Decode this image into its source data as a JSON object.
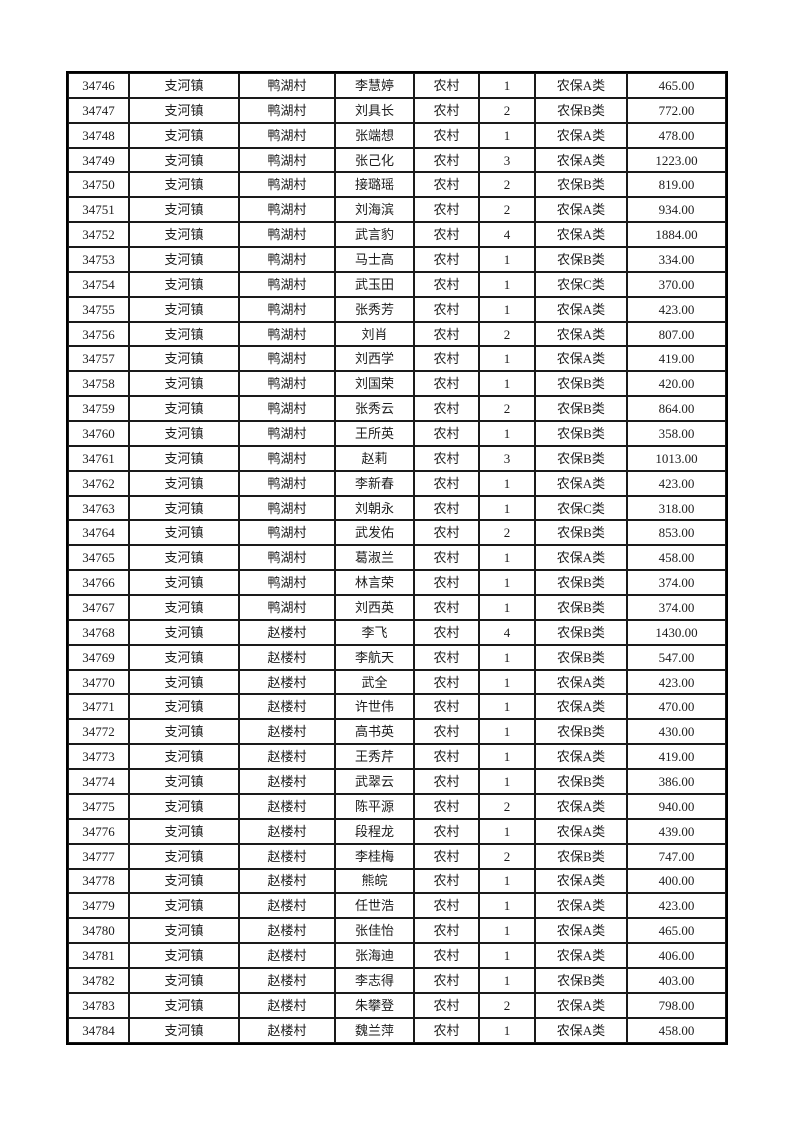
{
  "colors": {
    "page_background": "#ffffff",
    "grid_border": "#000000",
    "text": "#1c1c1c"
  },
  "table": {
    "rows": [
      [
        "34746",
        "支河镇",
        "鸭湖村",
        "李慧婷",
        "农村",
        "1",
        "农保A类",
        "465.00"
      ],
      [
        "34747",
        "支河镇",
        "鸭湖村",
        "刘具长",
        "农村",
        "2",
        "农保B类",
        "772.00"
      ],
      [
        "34748",
        "支河镇",
        "鸭湖村",
        "张端想",
        "农村",
        "1",
        "农保A类",
        "478.00"
      ],
      [
        "34749",
        "支河镇",
        "鸭湖村",
        "张己化",
        "农村",
        "3",
        "农保A类",
        "1223.00"
      ],
      [
        "34750",
        "支河镇",
        "鸭湖村",
        "接璐瑶",
        "农村",
        "2",
        "农保B类",
        "819.00"
      ],
      [
        "34751",
        "支河镇",
        "鸭湖村",
        "刘海滨",
        "农村",
        "2",
        "农保A类",
        "934.00"
      ],
      [
        "34752",
        "支河镇",
        "鸭湖村",
        "武言豹",
        "农村",
        "4",
        "农保A类",
        "1884.00"
      ],
      [
        "34753",
        "支河镇",
        "鸭湖村",
        "马士高",
        "农村",
        "1",
        "农保B类",
        "334.00"
      ],
      [
        "34754",
        "支河镇",
        "鸭湖村",
        "武玉田",
        "农村",
        "1",
        "农保C类",
        "370.00"
      ],
      [
        "34755",
        "支河镇",
        "鸭湖村",
        "张秀芳",
        "农村",
        "1",
        "农保A类",
        "423.00"
      ],
      [
        "34756",
        "支河镇",
        "鸭湖村",
        "刘肖",
        "农村",
        "2",
        "农保A类",
        "807.00"
      ],
      [
        "34757",
        "支河镇",
        "鸭湖村",
        "刘西学",
        "农村",
        "1",
        "农保A类",
        "419.00"
      ],
      [
        "34758",
        "支河镇",
        "鸭湖村",
        "刘国荣",
        "农村",
        "1",
        "农保B类",
        "420.00"
      ],
      [
        "34759",
        "支河镇",
        "鸭湖村",
        "张秀云",
        "农村",
        "2",
        "农保B类",
        "864.00"
      ],
      [
        "34760",
        "支河镇",
        "鸭湖村",
        "王所英",
        "农村",
        "1",
        "农保B类",
        "358.00"
      ],
      [
        "34761",
        "支河镇",
        "鸭湖村",
        "赵莉",
        "农村",
        "3",
        "农保B类",
        "1013.00"
      ],
      [
        "34762",
        "支河镇",
        "鸭湖村",
        "李新春",
        "农村",
        "1",
        "农保A类",
        "423.00"
      ],
      [
        "34763",
        "支河镇",
        "鸭湖村",
        "刘朝永",
        "农村",
        "1",
        "农保C类",
        "318.00"
      ],
      [
        "34764",
        "支河镇",
        "鸭湖村",
        "武发佑",
        "农村",
        "2",
        "农保B类",
        "853.00"
      ],
      [
        "34765",
        "支河镇",
        "鸭湖村",
        "葛淑兰",
        "农村",
        "1",
        "农保A类",
        "458.00"
      ],
      [
        "34766",
        "支河镇",
        "鸭湖村",
        "林言荣",
        "农村",
        "1",
        "农保B类",
        "374.00"
      ],
      [
        "34767",
        "支河镇",
        "鸭湖村",
        "刘西英",
        "农村",
        "1",
        "农保B类",
        "374.00"
      ],
      [
        "34768",
        "支河镇",
        "赵楼村",
        "李飞",
        "农村",
        "4",
        "农保B类",
        "1430.00"
      ],
      [
        "34769",
        "支河镇",
        "赵楼村",
        "李航天",
        "农村",
        "1",
        "农保B类",
        "547.00"
      ],
      [
        "34770",
        "支河镇",
        "赵楼村",
        "武全",
        "农村",
        "1",
        "农保A类",
        "423.00"
      ],
      [
        "34771",
        "支河镇",
        "赵楼村",
        "许世伟",
        "农村",
        "1",
        "农保A类",
        "470.00"
      ],
      [
        "34772",
        "支河镇",
        "赵楼村",
        "高书英",
        "农村",
        "1",
        "农保B类",
        "430.00"
      ],
      [
        "34773",
        "支河镇",
        "赵楼村",
        "王秀芹",
        "农村",
        "1",
        "农保A类",
        "419.00"
      ],
      [
        "34774",
        "支河镇",
        "赵楼村",
        "武翠云",
        "农村",
        "1",
        "农保B类",
        "386.00"
      ],
      [
        "34775",
        "支河镇",
        "赵楼村",
        "陈平源",
        "农村",
        "2",
        "农保A类",
        "940.00"
      ],
      [
        "34776",
        "支河镇",
        "赵楼村",
        "段程龙",
        "农村",
        "1",
        "农保A类",
        "439.00"
      ],
      [
        "34777",
        "支河镇",
        "赵楼村",
        "李桂梅",
        "农村",
        "2",
        "农保B类",
        "747.00"
      ],
      [
        "34778",
        "支河镇",
        "赵楼村",
        "熊皖",
        "农村",
        "1",
        "农保A类",
        "400.00"
      ],
      [
        "34779",
        "支河镇",
        "赵楼村",
        "任世浩",
        "农村",
        "1",
        "农保A类",
        "423.00"
      ],
      [
        "34780",
        "支河镇",
        "赵楼村",
        "张佳怡",
        "农村",
        "1",
        "农保A类",
        "465.00"
      ],
      [
        "34781",
        "支河镇",
        "赵楼村",
        "张海迪",
        "农村",
        "1",
        "农保A类",
        "406.00"
      ],
      [
        "34782",
        "支河镇",
        "赵楼村",
        "李志得",
        "农村",
        "1",
        "农保B类",
        "403.00"
      ],
      [
        "34783",
        "支河镇",
        "赵楼村",
        "朱攀登",
        "农村",
        "2",
        "农保A类",
        "798.00"
      ],
      [
        "34784",
        "支河镇",
        "赵楼村",
        "魏兰萍",
        "农村",
        "1",
        "农保A类",
        "458.00"
      ]
    ]
  }
}
